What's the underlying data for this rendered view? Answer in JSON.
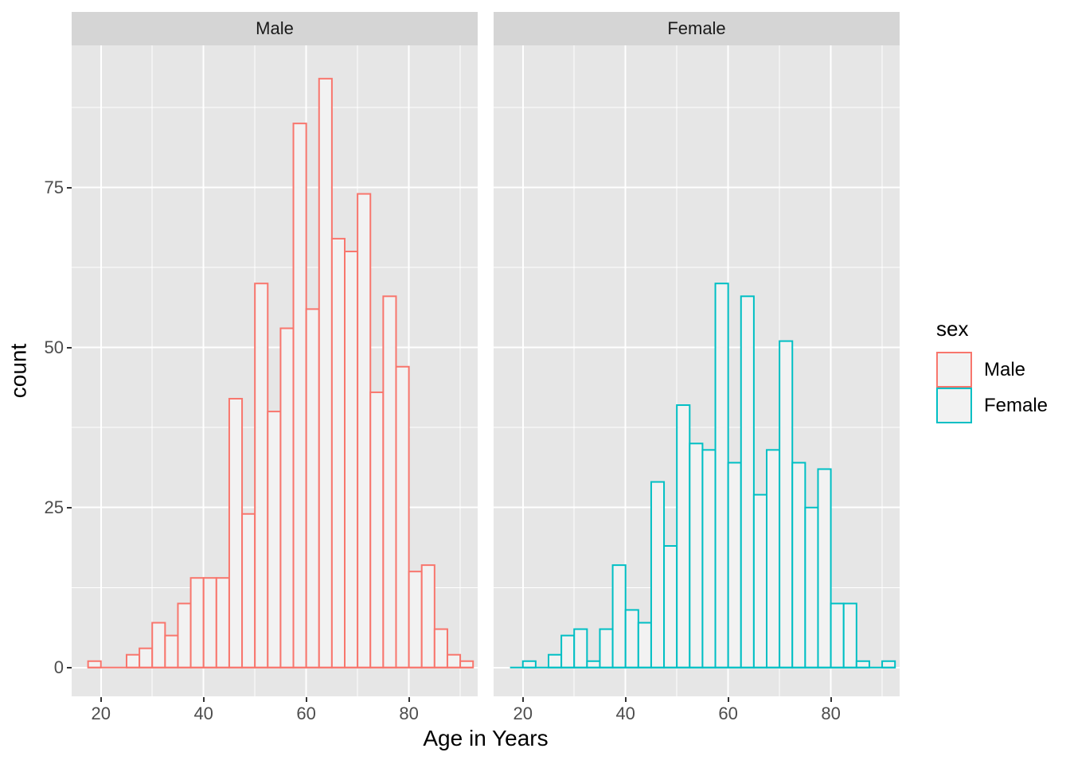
{
  "chart_data": {
    "type": "bar",
    "subtype": "faceted-histogram",
    "title": "",
    "xlabel": "Age in Years",
    "ylabel": "count",
    "x_ticks": [
      20,
      40,
      60,
      80
    ],
    "y_ticks": [
      0,
      25,
      50,
      75
    ],
    "x_minor_gridlines": [
      30,
      50,
      70,
      90
    ],
    "y_minor_gridlines": [
      12.5,
      37.5,
      62.5,
      87.5
    ],
    "x_range": [
      14.3,
      93.4
    ],
    "y_range": [
      -4.5,
      97.2
    ],
    "grid": "on",
    "legend_position": "right",
    "binwidth": 2.5,
    "bin_start": 17.5,
    "panels": [
      {
        "facet_label": "Male",
        "color": "#F8766D",
        "counts": [
          1,
          0,
          0,
          2,
          3,
          7,
          5,
          10,
          14,
          14,
          14,
          42,
          24,
          60,
          40,
          53,
          85,
          56,
          92,
          67,
          65,
          74,
          43,
          58,
          47,
          15,
          16,
          6,
          2,
          1
        ]
      },
      {
        "facet_label": "Female",
        "color": "#00BFC4",
        "counts": [
          0,
          1,
          0,
          2,
          5,
          6,
          1,
          6,
          16,
          9,
          7,
          29,
          19,
          41,
          35,
          34,
          60,
          32,
          58,
          27,
          34,
          51,
          32,
          25,
          31,
          10,
          10,
          1,
          0,
          1
        ]
      }
    ]
  },
  "legend": {
    "title": "sex",
    "items": [
      {
        "label": "Male",
        "color": "#F8766D"
      },
      {
        "label": "Female",
        "color": "#00BFC4"
      }
    ]
  },
  "colors": {
    "panel_bg": "#E6E6E6",
    "strip_bg": "#D5D5D5",
    "gridline": "#FFFFFF",
    "bar_fill": "#F2F2F2",
    "tick_text": "#4D4D4D",
    "tick_mark": "#333333"
  }
}
